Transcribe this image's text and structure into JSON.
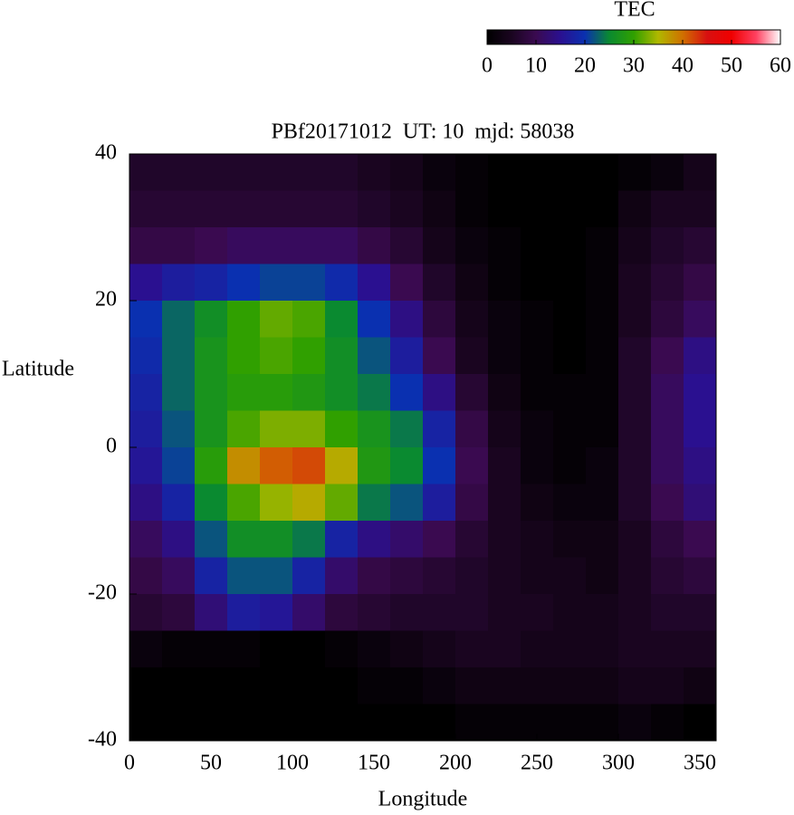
{
  "chart_data": {
    "type": "heatmap",
    "title": "PBf20171012  UT: 10  mjd: 58038",
    "x_label": "Longitude",
    "y_label": "Latitude",
    "colorbar_label": "TEC",
    "x": [
      10,
      30,
      50,
      70,
      90,
      110,
      130,
      150,
      170,
      190,
      210,
      230,
      250,
      270,
      290,
      310,
      330,
      350
    ],
    "y": [
      37.5,
      32.5,
      27.5,
      22.5,
      17.5,
      12.5,
      7.5,
      2.5,
      -2.5,
      -7.5,
      -12.5,
      -17.5,
      -22.5,
      -27.5,
      -32.5,
      -37.5
    ],
    "values": [
      [
        6,
        6,
        6,
        6,
        6,
        6,
        6,
        5,
        4,
        2,
        1,
        0,
        0,
        0,
        0,
        1,
        2,
        4
      ],
      [
        7,
        7,
        7,
        7,
        7,
        7,
        7,
        6,
        5,
        3,
        1,
        0,
        0,
        0,
        0,
        3,
        5,
        5
      ],
      [
        9,
        9,
        10,
        11,
        11,
        11,
        11,
        9,
        7,
        4,
        2,
        1,
        0,
        0,
        1,
        4,
        6,
        7
      ],
      [
        15,
        17,
        18,
        20,
        21,
        21,
        19,
        15,
        10,
        6,
        3,
        1,
        0,
        0,
        1,
        5,
        7,
        9
      ],
      [
        20,
        23,
        26,
        30,
        32,
        31,
        25,
        20,
        14,
        8,
        4,
        2,
        1,
        0,
        1,
        5,
        8,
        11
      ],
      [
        19,
        23,
        27,
        30,
        31,
        30,
        26,
        22,
        17,
        10,
        5,
        2,
        1,
        0,
        1,
        6,
        10,
        14
      ],
      [
        18,
        23,
        27,
        29,
        29,
        28,
        26,
        24,
        20,
        14,
        7,
        3,
        1,
        1,
        1,
        6,
        11,
        15
      ],
      [
        17,
        22,
        27,
        31,
        33,
        33,
        30,
        27,
        24,
        18,
        9,
        4,
        2,
        1,
        1,
        6,
        11,
        15
      ],
      [
        16,
        21,
        29,
        38,
        41,
        42,
        36,
        28,
        25,
        20,
        10,
        5,
        2,
        1,
        2,
        6,
        11,
        14
      ],
      [
        14,
        18,
        25,
        31,
        34,
        36,
        32,
        24,
        22,
        17,
        9,
        5,
        3,
        2,
        2,
        6,
        10,
        13
      ],
      [
        11,
        14,
        22,
        26,
        26,
        24,
        18,
        14,
        12,
        10,
        7,
        5,
        4,
        3,
        3,
        5,
        8,
        10
      ],
      [
        9,
        11,
        18,
        22,
        22,
        18,
        12,
        9,
        8,
        7,
        6,
        5,
        4,
        4,
        3,
        5,
        7,
        8
      ],
      [
        7,
        8,
        13,
        17,
        16,
        12,
        8,
        7,
        6,
        6,
        6,
        5,
        5,
        4,
        4,
        5,
        6,
        6
      ],
      [
        2,
        1,
        1,
        1,
        0,
        0,
        1,
        2,
        3,
        4,
        5,
        5,
        4,
        4,
        4,
        5,
        5,
        5
      ],
      [
        0,
        0,
        0,
        0,
        0,
        0,
        0,
        1,
        1,
        2,
        3,
        3,
        3,
        3,
        3,
        4,
        4,
        3
      ],
      [
        0,
        0,
        0,
        0,
        0,
        0,
        0,
        0,
        0,
        0,
        1,
        1,
        1,
        1,
        1,
        2,
        1,
        0
      ]
    ],
    "xlim": [
      0,
      360
    ],
    "ylim": [
      -40,
      40
    ],
    "zlim": [
      0,
      60
    ],
    "xticks": [
      0,
      50,
      100,
      150,
      200,
      250,
      300,
      350
    ],
    "yticks": [
      -40,
      -20,
      0,
      20,
      40
    ],
    "zticks": [
      0,
      10,
      20,
      30,
      40,
      50,
      60
    ],
    "colors": [
      "#000000",
      "#1a0520",
      "#3a0a50",
      "#2a1090",
      "#0a30b0",
      "#0a8a30",
      "#30a000",
      "#b0b800",
      "#d07000",
      "#d81010",
      "#f00000",
      "#ff4060",
      "#ffffff"
    ]
  }
}
